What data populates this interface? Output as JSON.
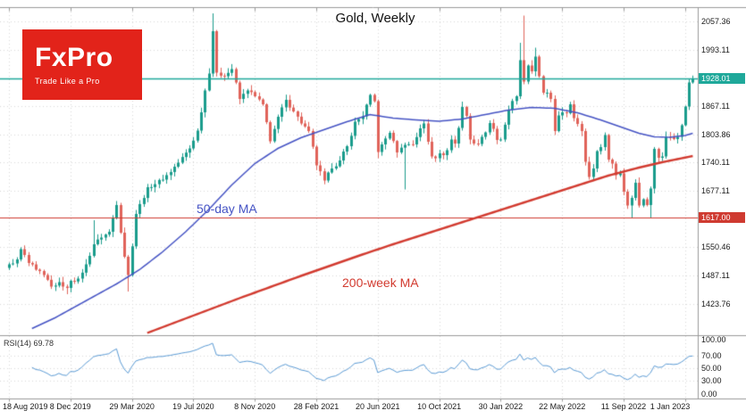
{
  "logo": {
    "brand": "FxPro",
    "tagline": "Trade Like a Pro",
    "bg": "#e2231a"
  },
  "chart_data": {
    "type": "candlestick",
    "title": "Gold, Weekly",
    "timeframe": "Weekly",
    "symbol": "Gold",
    "colors": {
      "panel_bg": "#ffffff",
      "grid": "#d9d9d9",
      "border": "#9a9a9a",
      "up": "#1a9c8c",
      "down": "#e0635a",
      "rsi_line": "#5b9bd5",
      "axis_text": "#1a1a1a"
    },
    "x_axis": {
      "labels": [
        {
          "t": "18 Aug 2019",
          "w": 0
        },
        {
          "t": "8 Dec 2019",
          "w": 16
        },
        {
          "t": "29 Mar 2020",
          "w": 32
        },
        {
          "t": "19 Jul 2020",
          "w": 48
        },
        {
          "t": "8 Nov 2020",
          "w": 64
        },
        {
          "t": "28 Feb 2021",
          "w": 80
        },
        {
          "t": "20 Jun 2021",
          "w": 96
        },
        {
          "t": "10 Oct 2021",
          "w": 112
        },
        {
          "t": "30 Jan 2022",
          "w": 128
        },
        {
          "t": "22 May 2022",
          "w": 144
        },
        {
          "t": "11 Sep 2022",
          "w": 160
        },
        {
          "t": "1 Jan 2023",
          "w": 176
        }
      ]
    },
    "y_axis": {
      "min": 1355,
      "max": 2085,
      "gridlines": [
        {
          "t": "2057.36",
          "v": 2057.36
        },
        {
          "t": "1993.11",
          "v": 1993.11
        },
        {
          "t": "1867.11",
          "v": 1867.11
        },
        {
          "t": "1803.86",
          "v": 1803.86
        },
        {
          "t": "1740.11",
          "v": 1740.11
        },
        {
          "t": "1677.11",
          "v": 1677.11
        },
        {
          "t": "1550.46",
          "v": 1550.46
        },
        {
          "t": "1487.11",
          "v": 1487.11
        },
        {
          "t": "1423.76",
          "v": 1423.76
        }
      ]
    },
    "series": {
      "weeks_total": 179,
      "close_anchors": [
        [
          0,
          1512
        ],
        [
          2,
          1523
        ],
        [
          3,
          1546
        ],
        [
          5,
          1515
        ],
        [
          7,
          1500
        ],
        [
          9,
          1488
        ],
        [
          11,
          1462
        ],
        [
          13,
          1472
        ],
        [
          15,
          1459
        ],
        [
          16,
          1475
        ],
        [
          18,
          1480
        ],
        [
          20,
          1512
        ],
        [
          22,
          1557
        ],
        [
          24,
          1572
        ],
        [
          26,
          1585
        ],
        [
          28,
          1645
        ],
        [
          30,
          1529
        ],
        [
          31,
          1488
        ],
        [
          33,
          1625
        ],
        [
          36,
          1685
        ],
        [
          40,
          1702
        ],
        [
          44,
          1740
        ],
        [
          47,
          1772
        ],
        [
          49,
          1812
        ],
        [
          51,
          1902
        ],
        [
          52,
          1940
        ],
        [
          53,
          2035
        ],
        [
          54,
          1942
        ],
        [
          56,
          1934
        ],
        [
          58,
          1950
        ],
        [
          60,
          1883
        ],
        [
          62,
          1902
        ],
        [
          64,
          1889
        ],
        [
          66,
          1871
        ],
        [
          68,
          1788
        ],
        [
          70,
          1843
        ],
        [
          72,
          1881
        ],
        [
          74,
          1855
        ],
        [
          76,
          1828
        ],
        [
          78,
          1811
        ],
        [
          80,
          1734
        ],
        [
          82,
          1700
        ],
        [
          84,
          1727
        ],
        [
          86,
          1745
        ],
        [
          88,
          1777
        ],
        [
          90,
          1832
        ],
        [
          92,
          1844
        ],
        [
          94,
          1892
        ],
        [
          95,
          1878
        ],
        [
          96,
          1764
        ],
        [
          97,
          1781
        ],
        [
          99,
          1807
        ],
        [
          101,
          1763
        ],
        [
          103,
          1780
        ],
        [
          105,
          1781
        ],
        [
          107,
          1817
        ],
        [
          108,
          1828
        ],
        [
          109,
          1787
        ],
        [
          110,
          1754
        ],
        [
          111,
          1750
        ],
        [
          112,
          1761
        ],
        [
          113,
          1757
        ],
        [
          114,
          1768
        ],
        [
          115,
          1792
        ],
        [
          116,
          1783
        ],
        [
          117,
          1818
        ],
        [
          118,
          1865
        ],
        [
          119,
          1845
        ],
        [
          120,
          1792
        ],
        [
          121,
          1783
        ],
        [
          122,
          1782
        ],
        [
          123,
          1798
        ],
        [
          124,
          1808
        ],
        [
          125,
          1829
        ],
        [
          126,
          1816
        ],
        [
          127,
          1791
        ],
        [
          128,
          1792
        ],
        [
          130,
          1859
        ],
        [
          132,
          1889
        ],
        [
          133,
          1970
        ],
        [
          134,
          1922
        ],
        [
          135,
          1958
        ],
        [
          136,
          1945
        ],
        [
          137,
          1978
        ],
        [
          138,
          1934
        ],
        [
          139,
          1897
        ],
        [
          140,
          1897
        ],
        [
          141,
          1883
        ],
        [
          142,
          1811
        ],
        [
          143,
          1846
        ],
        [
          144,
          1853
        ],
        [
          145,
          1851
        ],
        [
          146,
          1871
        ],
        [
          147,
          1840
        ],
        [
          148,
          1827
        ],
        [
          149,
          1811
        ],
        [
          150,
          1742
        ],
        [
          151,
          1708
        ],
        [
          152,
          1727
        ],
        [
          153,
          1766
        ],
        [
          154,
          1775
        ],
        [
          155,
          1802
        ],
        [
          156,
          1747
        ],
        [
          157,
          1738
        ],
        [
          158,
          1712
        ],
        [
          159,
          1716
        ],
        [
          160,
          1675
        ],
        [
          161,
          1644
        ],
        [
          162,
          1661
        ],
        [
          163,
          1695
        ],
        [
          164,
          1644
        ],
        [
          165,
          1658
        ],
        [
          166,
          1645
        ],
        [
          167,
          1682
        ],
        [
          168,
          1771
        ],
        [
          169,
          1751
        ],
        [
          170,
          1754
        ],
        [
          171,
          1798
        ],
        [
          172,
          1797
        ],
        [
          173,
          1793
        ],
        [
          174,
          1798
        ],
        [
          175,
          1824
        ],
        [
          176,
          1866
        ],
        [
          177,
          1920
        ],
        [
          178,
          1928
        ]
      ],
      "high_overrides": {
        "22": 1611,
        "53": 2075,
        "118": 1877,
        "133": 2009,
        "134": 2070,
        "137": 1998,
        "177": 1929
      },
      "low_overrides": {
        "15": 1445,
        "31": 1451,
        "96": 1750,
        "103": 1680,
        "162": 1615,
        "167": 1616
      }
    },
    "overlays": {
      "ma50": {
        "label": "50-day MA",
        "color": "#4553c4",
        "points": [
          [
            6,
            1368
          ],
          [
            12,
            1392
          ],
          [
            20,
            1430
          ],
          [
            28,
            1468
          ],
          [
            34,
            1500
          ],
          [
            40,
            1540
          ],
          [
            46,
            1585
          ],
          [
            52,
            1635
          ],
          [
            58,
            1690
          ],
          [
            64,
            1738
          ],
          [
            70,
            1772
          ],
          [
            76,
            1796
          ],
          [
            82,
            1814
          ],
          [
            88,
            1832
          ],
          [
            94,
            1848
          ],
          [
            100,
            1840
          ],
          [
            106,
            1836
          ],
          [
            112,
            1833
          ],
          [
            118,
            1838
          ],
          [
            124,
            1848
          ],
          [
            130,
            1858
          ],
          [
            136,
            1864
          ],
          [
            142,
            1862
          ],
          [
            148,
            1852
          ],
          [
            154,
            1836
          ],
          [
            160,
            1818
          ],
          [
            164,
            1806
          ],
          [
            168,
            1798
          ],
          [
            172,
            1797
          ],
          [
            176,
            1801
          ],
          [
            178,
            1806
          ]
        ]
      },
      "ma200w": {
        "label": "200-week MA",
        "color": "#d23b30",
        "points": [
          [
            36,
            1358
          ],
          [
            44,
            1384
          ],
          [
            52,
            1410
          ],
          [
            60,
            1436
          ],
          [
            68,
            1461
          ],
          [
            76,
            1486
          ],
          [
            84,
            1510
          ],
          [
            92,
            1534
          ],
          [
            100,
            1557
          ],
          [
            108,
            1579
          ],
          [
            116,
            1601
          ],
          [
            124,
            1623
          ],
          [
            132,
            1645
          ],
          [
            140,
            1667
          ],
          [
            148,
            1689
          ],
          [
            156,
            1711
          ],
          [
            164,
            1729
          ],
          [
            170,
            1741
          ],
          [
            178,
            1755
          ]
        ]
      },
      "hlines": [
        {
          "label": "1928.01",
          "value": 1928.01,
          "color": "#1ea89a",
          "width": 1.4
        },
        {
          "label": "1617.00",
          "value": 1617.0,
          "color": "#cf3a30",
          "width": 1.2
        }
      ]
    },
    "rsi": {
      "label": "RSI(14) 69.78",
      "period": 14,
      "last": 69.78,
      "levels": [
        70,
        50,
        30
      ],
      "axis_labels": [
        {
          "t": "100.00",
          "v": 100
        },
        {
          "t": "70.00",
          "v": 70
        },
        {
          "t": "50.00",
          "v": 50
        },
        {
          "t": "30.00",
          "v": 30
        },
        {
          "t": "0.00",
          "v": 0
        }
      ]
    }
  }
}
